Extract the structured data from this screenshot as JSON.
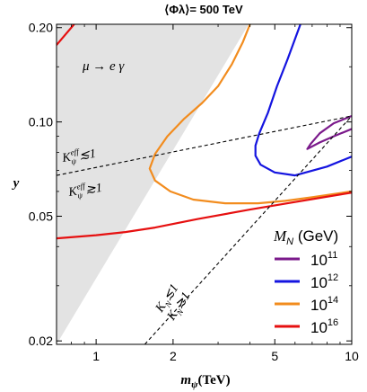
{
  "chart_data": {
    "type": "line",
    "title": "⟨Φλ⟩= 500 TeV",
    "xlabel": "mψ(TeV)",
    "ylabel": "y",
    "xscale": "log",
    "yscale": "log",
    "xlim": [
      0.7,
      10
    ],
    "ylim": [
      0.0195,
      0.205
    ],
    "xticks": [
      {
        "v": 1,
        "label": "1"
      },
      {
        "v": 2,
        "label": "2"
      },
      {
        "v": 5,
        "label": "5"
      },
      {
        "v": 10,
        "label": "10"
      }
    ],
    "yticks": [
      {
        "v": 0.02,
        "label": "0.02"
      },
      {
        "v": 0.05,
        "label": "0.05"
      },
      {
        "v": 0.1,
        "label": "0.10"
      },
      {
        "v": 0.2,
        "label": "0.20"
      }
    ],
    "excluded_region": {
      "label": "μ → e γ",
      "color": "#e3e3e3",
      "boundary": [
        [
          0.7,
          0.0195
        ],
        [
          3.95,
          0.205
        ]
      ]
    },
    "keff_line": {
      "points": [
        [
          0.7,
          0.0675
        ],
        [
          10,
          0.1045
        ]
      ],
      "label_le": "Kψeff≲1",
      "label_ge": "Kψeff≳1"
    },
    "kn_line": {
      "points": [
        [
          1.55,
          0.0195
        ],
        [
          10,
          0.1045
        ]
      ],
      "label_le": "KN≲1",
      "label_ge": "KN≳1"
    },
    "legend_title": "MN (GeV)",
    "series": [
      {
        "name": "10^11",
        "color": "#7b1a8b",
        "points": [
          [
            10,
            0.1045
          ],
          [
            8.5,
            0.099
          ],
          [
            7.5,
            0.092
          ],
          [
            6.9,
            0.085
          ],
          [
            6.7,
            0.082
          ],
          [
            7.5,
            0.086
          ],
          [
            8.5,
            0.09
          ],
          [
            10,
            0.095
          ]
        ]
      },
      {
        "name": "10^12",
        "color": "#1414e0",
        "points": [
          [
            6.3,
            0.205
          ],
          [
            5.6,
            0.158
          ],
          [
            5.1,
            0.13
          ],
          [
            4.7,
            0.107
          ],
          [
            4.35,
            0.092
          ],
          [
            4.2,
            0.084
          ],
          [
            4.2,
            0.078
          ],
          [
            4.4,
            0.073
          ],
          [
            5.0,
            0.069
          ],
          [
            6.0,
            0.0675
          ],
          [
            8,
            0.072
          ],
          [
            10,
            0.0775
          ]
        ]
      },
      {
        "name": "10^14",
        "color": "#f28c1e",
        "points": [
          [
            4.0,
            0.205
          ],
          [
            3.75,
            0.18
          ],
          [
            3.4,
            0.153
          ],
          [
            3.0,
            0.13
          ],
          [
            2.6,
            0.115
          ],
          [
            2.2,
            0.102
          ],
          [
            1.9,
            0.09
          ],
          [
            1.7,
            0.079
          ],
          [
            1.62,
            0.071
          ],
          [
            1.7,
            0.065
          ],
          [
            1.95,
            0.06
          ],
          [
            2.4,
            0.0565
          ],
          [
            3.2,
            0.055
          ],
          [
            4.3,
            0.055
          ],
          [
            5.5,
            0.056
          ],
          [
            7,
            0.0575
          ],
          [
            10,
            0.06
          ]
        ]
      },
      {
        "name": "10^16",
        "color": "#e61010",
        "points": [
          [
            0.7,
            0.0425
          ],
          [
            1.0,
            0.0435
          ],
          [
            1.3,
            0.0445
          ],
          [
            1.7,
            0.046
          ],
          [
            2.5,
            0.049
          ],
          [
            4,
            0.0525
          ],
          [
            6,
            0.0555
          ],
          [
            10,
            0.0595
          ]
        ]
      },
      {
        "name": "10^16 (upper)",
        "color": "#e61010",
        "points": [
          [
            0.7,
            0.176
          ],
          [
            0.82,
            0.205
          ]
        ]
      }
    ],
    "legend_entries": [
      {
        "base": "10",
        "exp": "11",
        "color": "#7b1a8b"
      },
      {
        "base": "10",
        "exp": "12",
        "color": "#1414e0"
      },
      {
        "base": "10",
        "exp": "14",
        "color": "#f28c1e"
      },
      {
        "base": "10",
        "exp": "16",
        "color": "#e61010"
      }
    ]
  }
}
